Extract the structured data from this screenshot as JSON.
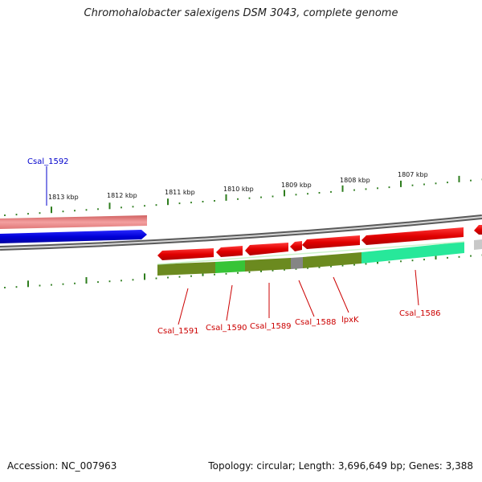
{
  "title": "Chromohalobacter salexigens DSM 3043, complete genome",
  "footer": {
    "accession": "Accession: NC_007963",
    "stats": "Topology: circular; Length: 3,696,649 bp; Genes: 3,388"
  },
  "colors": {
    "tick": "#2e7d1e",
    "backbone": "#8c8c8c",
    "forward_gene": "#0000dd",
    "forward_gene_light": "#f08a8a",
    "reverse_gene": "#e00000",
    "label_forward": "#0000cc",
    "label_reverse": "#cc0000",
    "gc_dark": "#6b8a1f",
    "gc_green": "#37c437",
    "gc_gray": "#858585",
    "gc_cyan": "#27e89a"
  },
  "scale_labels": [
    "1813 kbp",
    "1812 kbp",
    "1811 kbp",
    "1810 kbp",
    "1809 kbp",
    "1808 kbp",
    "1807 kbp"
  ],
  "gene_labels": {
    "forward": [
      "Csal_1592"
    ],
    "reverse": [
      "Csal_1591",
      "Csal_1590",
      "Csal_1589",
      "Csal_1588",
      "lpxK",
      "Csal_1586"
    ]
  }
}
